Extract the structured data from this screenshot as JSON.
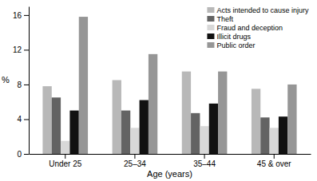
{
  "chart_data": {
    "type": "bar",
    "categories": [
      "Under 25",
      "25–34",
      "35–44",
      "45 & over"
    ],
    "series": [
      {
        "name": "Acts intended to cause injury",
        "values": [
          7.8,
          8.5,
          9.5,
          7.5
        ],
        "color": "#b8b8b8"
      },
      {
        "name": "Theft",
        "values": [
          6.5,
          5.0,
          4.7,
          4.2
        ],
        "color": "#636363"
      },
      {
        "name": "Fraud and deception",
        "values": [
          1.5,
          3.0,
          3.2,
          3.0
        ],
        "color": "#d8d8d8"
      },
      {
        "name": "Illicit drugs",
        "values": [
          5.0,
          6.2,
          5.8,
          4.3
        ],
        "color": "#111111"
      },
      {
        "name": "Public order",
        "values": [
          15.8,
          11.5,
          9.5,
          8.0
        ],
        "color": "#969696"
      }
    ],
    "xlabel": "Age (years)",
    "ylabel": "%",
    "ylim": [
      0,
      17
    ],
    "yticks": [
      0,
      4,
      8,
      12,
      16
    ],
    "grid": false,
    "legend": "upper right"
  }
}
